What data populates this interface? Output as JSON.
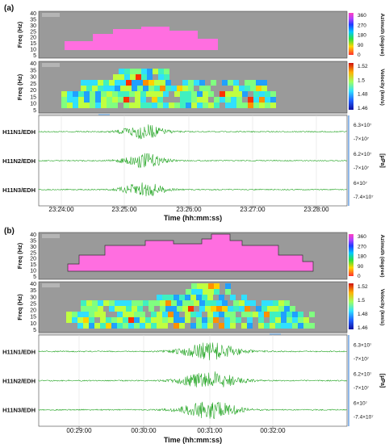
{
  "chart_data": [
    {
      "id": "a",
      "type": "heatmap",
      "panel_label": "(a)",
      "azimuth": {
        "ylabel": "Freq (Hz)",
        "yticks": [
          "40",
          "35",
          "30",
          "25",
          "20",
          "15",
          "10",
          "5"
        ],
        "colorbar_label": "Azimuth (degree)",
        "colorbar_ticks": [
          "360",
          "270",
          "180",
          "90",
          "0"
        ]
      },
      "velocity": {
        "ylabel": "Freq (Hz)",
        "yticks": [
          "40",
          "35",
          "30",
          "25",
          "20",
          "15",
          "10",
          "5"
        ],
        "colorbar_label": "Velocity (km/s)",
        "colorbar_ticks": [
          "1.52",
          "1.5",
          "1.48",
          "1.46"
        ]
      },
      "traces": [
        {
          "name": "H11N1/EDH",
          "scale_top": "6.3×10⁷",
          "scale_bottom": "-7×10⁷"
        },
        {
          "name": "H11N2/EDH",
          "scale_top": "6.2×10⁷",
          "scale_bottom": "-7×10⁷"
        },
        {
          "name": "H11N3/EDH",
          "scale_top": "6×10⁷",
          "scale_bottom": "-7.4×10⁷"
        }
      ],
      "unit_label": "[μPa]",
      "xticks": [
        "23:24:00",
        "23:25:00",
        "23:26:00",
        "23:27:00",
        "23:28:00"
      ],
      "xlabel": "Time (hh:mm:ss)"
    },
    {
      "id": "b",
      "type": "heatmap",
      "panel_label": "(b)",
      "azimuth": {
        "ylabel": "Freq (Hz)",
        "yticks": [
          "40",
          "35",
          "30",
          "25",
          "20",
          "15",
          "10",
          "5"
        ],
        "colorbar_label": "Azimuth (degree)",
        "colorbar_ticks": [
          "360",
          "270",
          "180",
          "90",
          "0"
        ]
      },
      "velocity": {
        "ylabel": "Freq (Hz)",
        "yticks": [
          "40",
          "35",
          "30",
          "25",
          "20",
          "15",
          "10",
          "5"
        ],
        "colorbar_label": "Velocity (km/s)",
        "colorbar_ticks": [
          "1.52",
          "1.5",
          "1.48",
          "1.46"
        ]
      },
      "traces": [
        {
          "name": "H11N1/EDH",
          "scale_top": "6.3×10⁷",
          "scale_bottom": "-7×10⁷"
        },
        {
          "name": "H11N2/EDH",
          "scale_top": "6.2×10⁷",
          "scale_bottom": "-7×10⁷"
        },
        {
          "name": "H11N3/EDH",
          "scale_top": "6×10⁷",
          "scale_bottom": "-7.4×10⁷"
        }
      ],
      "unit_label": "[μPa]",
      "xticks": [
        "00:29:00",
        "00:30:00",
        "00:31:00",
        "00:32:00"
      ],
      "xlabel": "Time (hh:mm:ss)"
    }
  ]
}
